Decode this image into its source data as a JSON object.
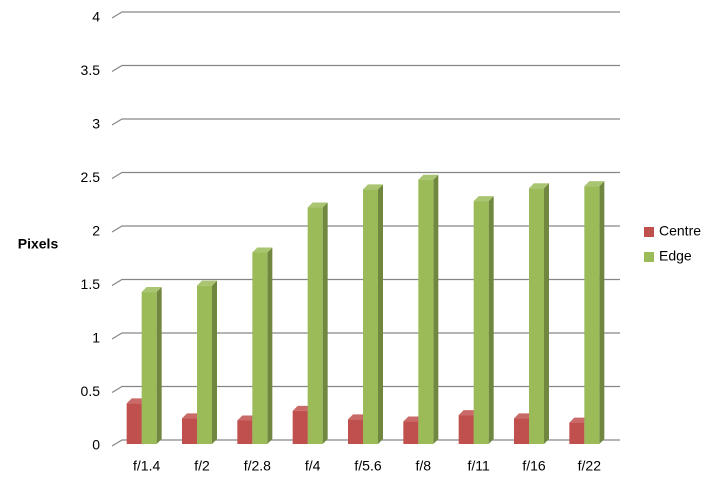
{
  "chart_data": {
    "type": "bar",
    "y_label": "Pixels",
    "categories": [
      "f/1.4",
      "f/2",
      "f/2.8",
      "f/4",
      "f/5.6",
      "f/8",
      "f/11",
      "f/16",
      "f/22"
    ],
    "series": [
      {
        "name": "Centre",
        "color": "#c0504d",
        "values": [
          0.38,
          0.24,
          0.22,
          0.31,
          0.23,
          0.21,
          0.27,
          0.24,
          0.2
        ]
      },
      {
        "name": "Edge",
        "color": "#9bbb59",
        "values": [
          1.42,
          1.48,
          1.79,
          2.21,
          2.38,
          2.47,
          2.27,
          2.39,
          2.41
        ]
      }
    ],
    "ylim": [
      0,
      4
    ],
    "yticks": [
      0,
      0.5,
      1,
      1.5,
      2,
      2.5,
      3,
      3.5,
      4
    ],
    "grid": true
  }
}
